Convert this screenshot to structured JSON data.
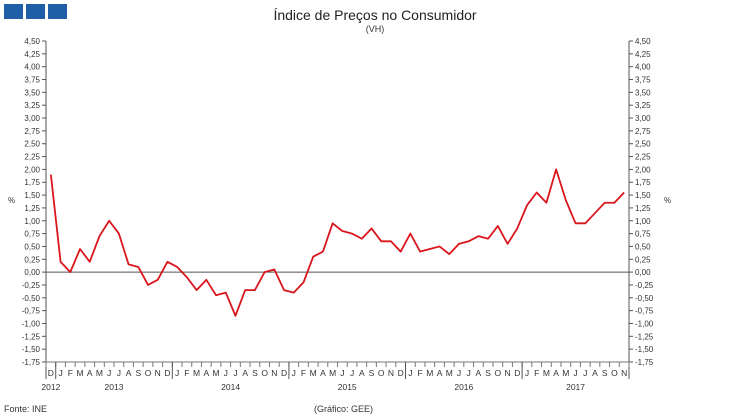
{
  "branding": {
    "logo": "ine-logo-blocks",
    "color": "#1f5fa8"
  },
  "header": {
    "title": "Índice de Preços no Consumidor",
    "subtitle": "(VH)"
  },
  "axes": {
    "unit_left": "%",
    "unit_right": "%"
  },
  "footer": {
    "source": "Fonte: INE",
    "credit": "(Gráfico: GEE)"
  },
  "chart_data": {
    "type": "line",
    "title": "Índice de Preços no Consumidor",
    "subtitle": "(VH)",
    "ylabel": "%",
    "ylim": [
      -1.75,
      4.5
    ],
    "ytick_step": 0.25,
    "y_ticks": [
      "4,50",
      "4,25",
      "4,00",
      "3,75",
      "3,50",
      "3,25",
      "3,00",
      "2,75",
      "2,50",
      "2,25",
      "2,00",
      "1,75",
      "1,50",
      "1,25",
      "1,00",
      "0,75",
      "0,50",
      "0,25",
      "0,00",
      "-0,25",
      "-0,50",
      "-0,75",
      "-1,00",
      "-1,25",
      "-1,50",
      "-1,75"
    ],
    "month_labels": [
      "D",
      "J",
      "F",
      "M",
      "A",
      "M",
      "J",
      "J",
      "A",
      "S",
      "O",
      "N",
      "D",
      "J",
      "F",
      "M",
      "A",
      "M",
      "J",
      "J",
      "A",
      "S",
      "O",
      "N",
      "D",
      "J",
      "F",
      "M",
      "A",
      "M",
      "J",
      "J",
      "A",
      "S",
      "O",
      "N",
      "D",
      "J",
      "F",
      "M",
      "A",
      "M",
      "J",
      "J",
      "A",
      "S",
      "O",
      "N",
      "D",
      "J",
      "F",
      "M",
      "A",
      "M",
      "J",
      "J",
      "A",
      "S",
      "O",
      "N"
    ],
    "years": [
      {
        "label": "2012",
        "first_index": 0,
        "last_index": 0
      },
      {
        "label": "2013",
        "first_index": 1,
        "last_index": 12
      },
      {
        "label": "2014",
        "first_index": 13,
        "last_index": 24
      },
      {
        "label": "2015",
        "first_index": 25,
        "last_index": 36
      },
      {
        "label": "2016",
        "first_index": 37,
        "last_index": 48
      },
      {
        "label": "2017",
        "first_index": 49,
        "last_index": 59
      }
    ],
    "series": [
      {
        "color": "#d9161c",
        "values": [
          1.9,
          0.2,
          0.0,
          0.45,
          0.2,
          0.7,
          1.0,
          0.75,
          0.15,
          0.1,
          -0.25,
          -0.15,
          0.2,
          0.1,
          -0.1,
          -0.35,
          -0.15,
          -0.45,
          -0.4,
          -0.85,
          -0.35,
          -0.35,
          0.0,
          0.05,
          -0.35,
          -0.4,
          -0.2,
          0.3,
          0.4,
          0.95,
          0.8,
          0.75,
          0.65,
          0.85,
          0.6,
          0.6,
          0.4,
          0.75,
          0.4,
          0.45,
          0.5,
          0.35,
          0.55,
          0.6,
          0.7,
          0.65,
          0.9,
          0.55,
          0.85,
          1.3,
          1.55,
          1.35,
          2.0,
          1.4,
          0.95,
          0.95,
          1.15,
          1.35,
          1.35,
          1.55
        ]
      }
    ]
  }
}
